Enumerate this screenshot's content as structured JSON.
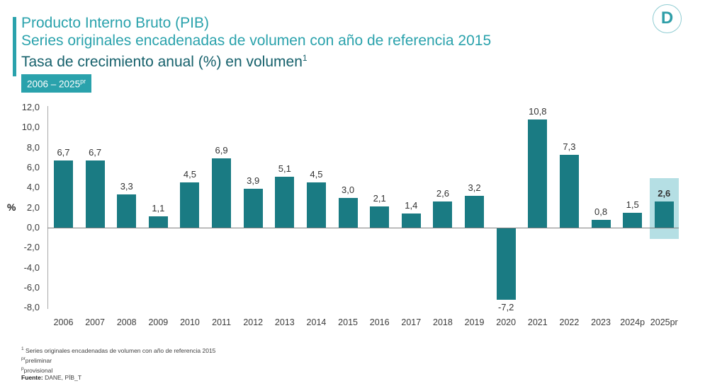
{
  "header": {
    "title_line1": "Producto Interno Bruto (PIB)",
    "title_line2": "Series originales encadenadas de volumen con año de referencia 2015",
    "title_line3": "Tasa de crecimiento anual (%) en volumen",
    "title_line3_sup": "1",
    "badge_text": "2006 – 2025",
    "badge_sup": "pr",
    "logo_letter": "D"
  },
  "colors": {
    "title_teal": "#2aa2ac",
    "title_dark_teal": "#15606b",
    "bar": "#1a7b83",
    "highlight": "#b5dfe4",
    "axis_line": "#a9a9a9",
    "zero_line": "#7f7f7f",
    "label_text": "#333333"
  },
  "chart_data": {
    "type": "bar",
    "title": "Producto Interno Bruto (PIB) — Tasa de crecimiento anual (%) en volumen",
    "xlabel": "",
    "ylabel": "%",
    "ylim": [
      -8.0,
      12.0
    ],
    "ytick_step": 2.0,
    "ytick_labels": [
      "12,0",
      "10,0",
      "8,0",
      "6,0",
      "4,0",
      "2,0",
      "0,0",
      "-2,0",
      "-4,0",
      "-6,0",
      "-8,0"
    ],
    "grid": false,
    "legend": false,
    "categories": [
      "2006",
      "2007",
      "2008",
      "2009",
      "2010",
      "2011",
      "2012",
      "2013",
      "2014",
      "2015",
      "2016",
      "2017",
      "2018",
      "2019",
      "2020",
      "2021",
      "2022",
      "2023",
      "2024p",
      "2025pr"
    ],
    "values": [
      6.7,
      6.7,
      3.3,
      1.1,
      4.5,
      6.9,
      3.9,
      5.1,
      4.5,
      3.0,
      2.1,
      1.4,
      2.6,
      3.2,
      -7.2,
      10.8,
      7.3,
      0.8,
      1.5,
      2.6
    ],
    "value_labels": [
      "6,7",
      "6,7",
      "3,3",
      "1,1",
      "4,5",
      "6,9",
      "3,9",
      "5,1",
      "4,5",
      "3,0",
      "2,1",
      "1,4",
      "2,6",
      "3,2",
      "-7,2",
      "10,8",
      "7,3",
      "0,8",
      "1,5",
      "2,6"
    ],
    "highlighted_category": "2025pr"
  },
  "notes": [
    {
      "sup": "1",
      "text": " Series originales encadenadas de volumen con año de referencia 2015"
    },
    {
      "sup": "pr",
      "text": "preliminar"
    },
    {
      "sup": "p",
      "text": "provisional"
    },
    {
      "bold": "Fuente:",
      "text": " DANE, PÏB_T"
    }
  ]
}
